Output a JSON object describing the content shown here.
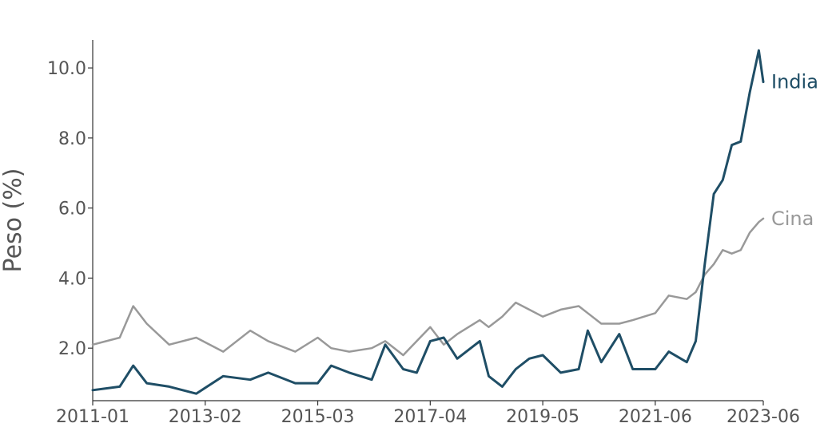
{
  "chart_data": {
    "type": "line",
    "title": "",
    "xlabel": "",
    "ylabel": "Peso (%)",
    "x_ticks": [
      "2011-01",
      "2013-02",
      "2015-03",
      "2017-04",
      "2019-05",
      "2021-06",
      "2023-06"
    ],
    "y_ticks": [
      "2.0",
      "4.0",
      "6.0",
      "8.0",
      "10.0"
    ],
    "ylim": [
      0.5,
      10.8
    ],
    "xlim": [
      "2011-01",
      "2023-06"
    ],
    "grid": false,
    "legend": "inline labels at line ends",
    "series": [
      {
        "name": "India",
        "color": "#1f4e66",
        "points": [
          [
            "2011-01",
            0.8
          ],
          [
            "2011-07",
            0.9
          ],
          [
            "2011-10",
            1.5
          ],
          [
            "2012-01",
            1.0
          ],
          [
            "2012-06",
            0.9
          ],
          [
            "2012-12",
            0.7
          ],
          [
            "2013-06",
            1.2
          ],
          [
            "2013-12",
            1.1
          ],
          [
            "2014-04",
            1.3
          ],
          [
            "2014-10",
            1.0
          ],
          [
            "2015-03",
            1.0
          ],
          [
            "2015-06",
            1.5
          ],
          [
            "2015-10",
            1.3
          ],
          [
            "2016-03",
            1.1
          ],
          [
            "2016-06",
            2.1
          ],
          [
            "2016-10",
            1.4
          ],
          [
            "2017-01",
            1.3
          ],
          [
            "2017-04",
            2.2
          ],
          [
            "2017-07",
            2.3
          ],
          [
            "2017-10",
            1.7
          ],
          [
            "2018-03",
            2.2
          ],
          [
            "2018-05",
            1.2
          ],
          [
            "2018-08",
            0.9
          ],
          [
            "2018-11",
            1.4
          ],
          [
            "2019-02",
            1.7
          ],
          [
            "2019-05",
            1.8
          ],
          [
            "2019-09",
            1.3
          ],
          [
            "2020-01",
            1.4
          ],
          [
            "2020-03",
            2.5
          ],
          [
            "2020-06",
            1.6
          ],
          [
            "2020-10",
            2.4
          ],
          [
            "2021-01",
            1.4
          ],
          [
            "2021-06",
            1.4
          ],
          [
            "2021-09",
            1.9
          ],
          [
            "2022-01",
            1.6
          ],
          [
            "2022-03",
            2.2
          ],
          [
            "2022-05",
            4.4
          ],
          [
            "2022-07",
            6.4
          ],
          [
            "2022-09",
            6.8
          ],
          [
            "2022-11",
            7.8
          ],
          [
            "2023-01",
            7.9
          ],
          [
            "2023-03",
            9.3
          ],
          [
            "2023-05",
            10.5
          ],
          [
            "2023-06",
            9.6
          ]
        ]
      },
      {
        "name": "Cina",
        "color": "#999999",
        "points": [
          [
            "2011-01",
            2.1
          ],
          [
            "2011-07",
            2.3
          ],
          [
            "2011-10",
            3.2
          ],
          [
            "2012-01",
            2.7
          ],
          [
            "2012-06",
            2.1
          ],
          [
            "2012-12",
            2.3
          ],
          [
            "2013-06",
            1.9
          ],
          [
            "2013-12",
            2.5
          ],
          [
            "2014-04",
            2.2
          ],
          [
            "2014-10",
            1.9
          ],
          [
            "2015-03",
            2.3
          ],
          [
            "2015-06",
            2.0
          ],
          [
            "2015-10",
            1.9
          ],
          [
            "2016-03",
            2.0
          ],
          [
            "2016-06",
            2.2
          ],
          [
            "2016-10",
            1.8
          ],
          [
            "2017-01",
            2.2
          ],
          [
            "2017-04",
            2.6
          ],
          [
            "2017-07",
            2.1
          ],
          [
            "2017-10",
            2.4
          ],
          [
            "2018-03",
            2.8
          ],
          [
            "2018-05",
            2.6
          ],
          [
            "2018-08",
            2.9
          ],
          [
            "2018-11",
            3.3
          ],
          [
            "2019-02",
            3.1
          ],
          [
            "2019-05",
            2.9
          ],
          [
            "2019-09",
            3.1
          ],
          [
            "2020-01",
            3.2
          ],
          [
            "2020-03",
            3.0
          ],
          [
            "2020-06",
            2.7
          ],
          [
            "2020-10",
            2.7
          ],
          [
            "2021-01",
            2.8
          ],
          [
            "2021-06",
            3.0
          ],
          [
            "2021-09",
            3.5
          ],
          [
            "2022-01",
            3.4
          ],
          [
            "2022-03",
            3.6
          ],
          [
            "2022-05",
            4.1
          ],
          [
            "2022-07",
            4.4
          ],
          [
            "2022-09",
            4.8
          ],
          [
            "2022-11",
            4.7
          ],
          [
            "2023-01",
            4.8
          ],
          [
            "2023-03",
            5.3
          ],
          [
            "2023-05",
            5.6
          ],
          [
            "2023-06",
            5.7
          ]
        ]
      }
    ]
  }
}
